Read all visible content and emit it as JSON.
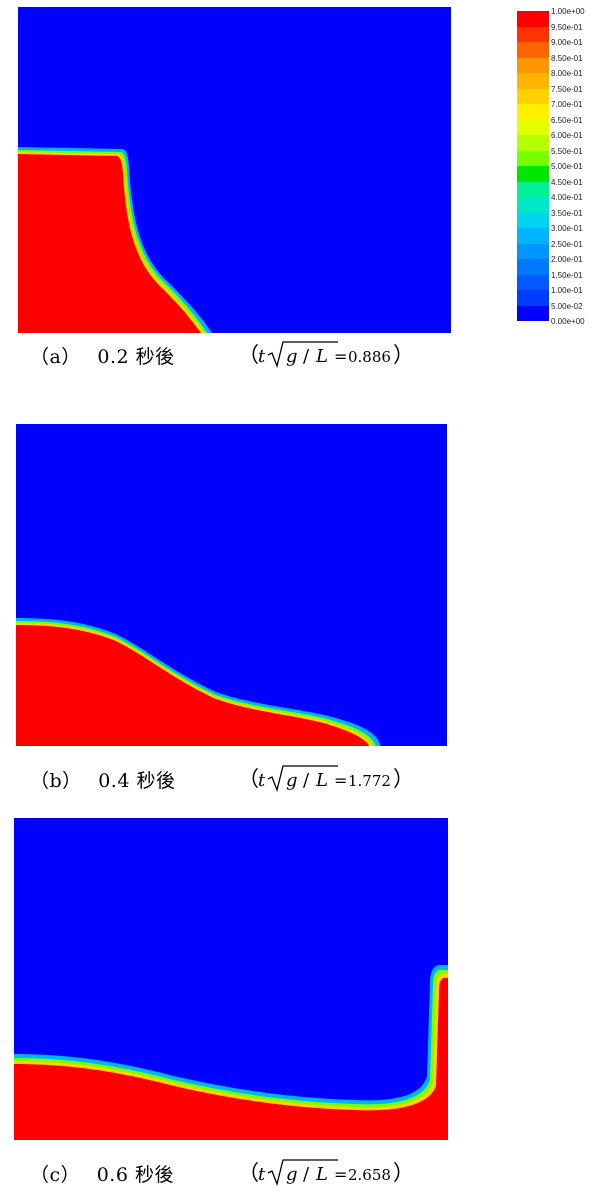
{
  "legend": {
    "labels": [
      "1.00e+00",
      "9.50e-01",
      "9.00e-01",
      "8.50e-01",
      "8.00e-01",
      "7.50e-01",
      "7.00e-01",
      "6.50e-01",
      "6.00e-01",
      "5.50e-01",
      "5.00e-01",
      "4.50e-01",
      "4.00e-01",
      "3.50e-01",
      "3.00e-01",
      "2.50e-01",
      "2.00e-01",
      "1.50e-01",
      "1.00e-01",
      "5.00e-02",
      "0.00e+00"
    ],
    "colors": [
      "#ff0000",
      "#ff3200",
      "#ff6400",
      "#ff9600",
      "#ffb400",
      "#ffd200",
      "#fff000",
      "#e6ff00",
      "#b4ff00",
      "#78ff00",
      "#00e600",
      "#00f096",
      "#00e6c8",
      "#00d2f0",
      "#00b4ff",
      "#0096ff",
      "#0078ff",
      "#005aff",
      "#003cff",
      "#0000ff"
    ]
  },
  "colors": {
    "water": "#ff0000",
    "air": "#0000ff"
  },
  "panels": [
    {
      "label": "（a）",
      "time": "0.2 秒後",
      "formula_value": "0.886"
    },
    {
      "label": "（b）",
      "time": "0.4 秒後",
      "formula_value": "1.772"
    },
    {
      "label": "（c）",
      "time": "0.6 秒後",
      "formula_value": "2.658"
    }
  ],
  "formula": {
    "t": "t",
    "g": "g",
    "slash": "/",
    "L": "L",
    "eq": "=",
    "open": "（",
    "close": "）"
  }
}
